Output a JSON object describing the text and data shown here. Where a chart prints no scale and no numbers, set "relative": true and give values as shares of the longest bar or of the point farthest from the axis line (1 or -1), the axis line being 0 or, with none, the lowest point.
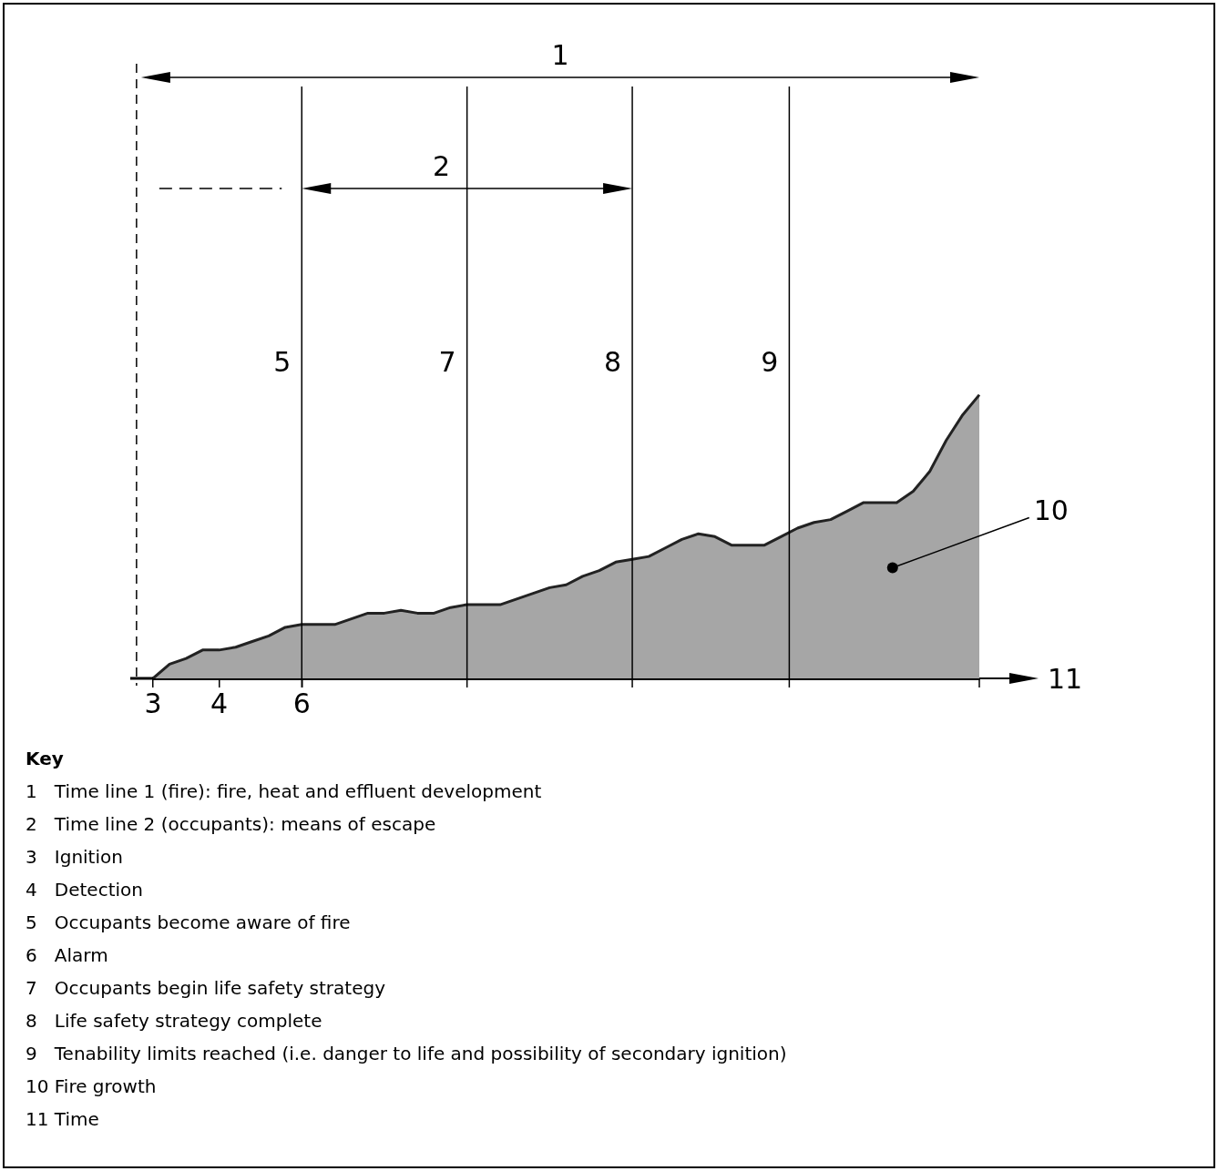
{
  "chart_data": {
    "type": "area",
    "relative": true,
    "color": "#a6a6a6",
    "xlabel": "11",
    "categories": [
      "3",
      null,
      null,
      null,
      "4",
      null,
      null,
      null,
      null,
      "6",
      null,
      null,
      null,
      null,
      null,
      null,
      null,
      null,
      null,
      null,
      null,
      null,
      null,
      null,
      null,
      null,
      null,
      null,
      null,
      null,
      null,
      null,
      null,
      null,
      null,
      null,
      null,
      null,
      null,
      null,
      null,
      null,
      null,
      null,
      null,
      null,
      null,
      null,
      null,
      null,
      null
    ],
    "values": [
      0,
      0.05,
      0.07,
      0.1,
      0.1,
      0.11,
      0.13,
      0.15,
      0.18,
      0.19,
      0.19,
      0.19,
      0.21,
      0.23,
      0.23,
      0.24,
      0.23,
      0.23,
      0.25,
      0.26,
      0.26,
      0.26,
      0.28,
      0.3,
      0.32,
      0.33,
      0.36,
      0.38,
      0.41,
      0.42,
      0.43,
      0.46,
      0.49,
      0.51,
      0.5,
      0.47,
      0.47,
      0.47,
      0.5,
      0.53,
      0.55,
      0.56,
      0.59,
      0.62,
      0.62,
      0.62,
      0.66,
      0.73,
      0.84,
      0.93,
      1
    ],
    "grid": "x",
    "annotations": [
      "1",
      "2",
      "5",
      "7",
      "8",
      "9",
      "10",
      "Key",
      "1   Time line 1 (fire): fire, heat and effluent development",
      "2   Time line 2 (occupants): means of escape",
      "3   Ignition",
      "4   Detection",
      "5   Occupants become aware of fire",
      "6   Alarm",
      "7   Occupants begin life safety strategy",
      "8   Life safety strategy complete",
      "9   Tenability limits reached (i.e. danger to life and possibility of secondary ignition)",
      "10 Fire growth",
      "11 Time"
    ]
  }
}
